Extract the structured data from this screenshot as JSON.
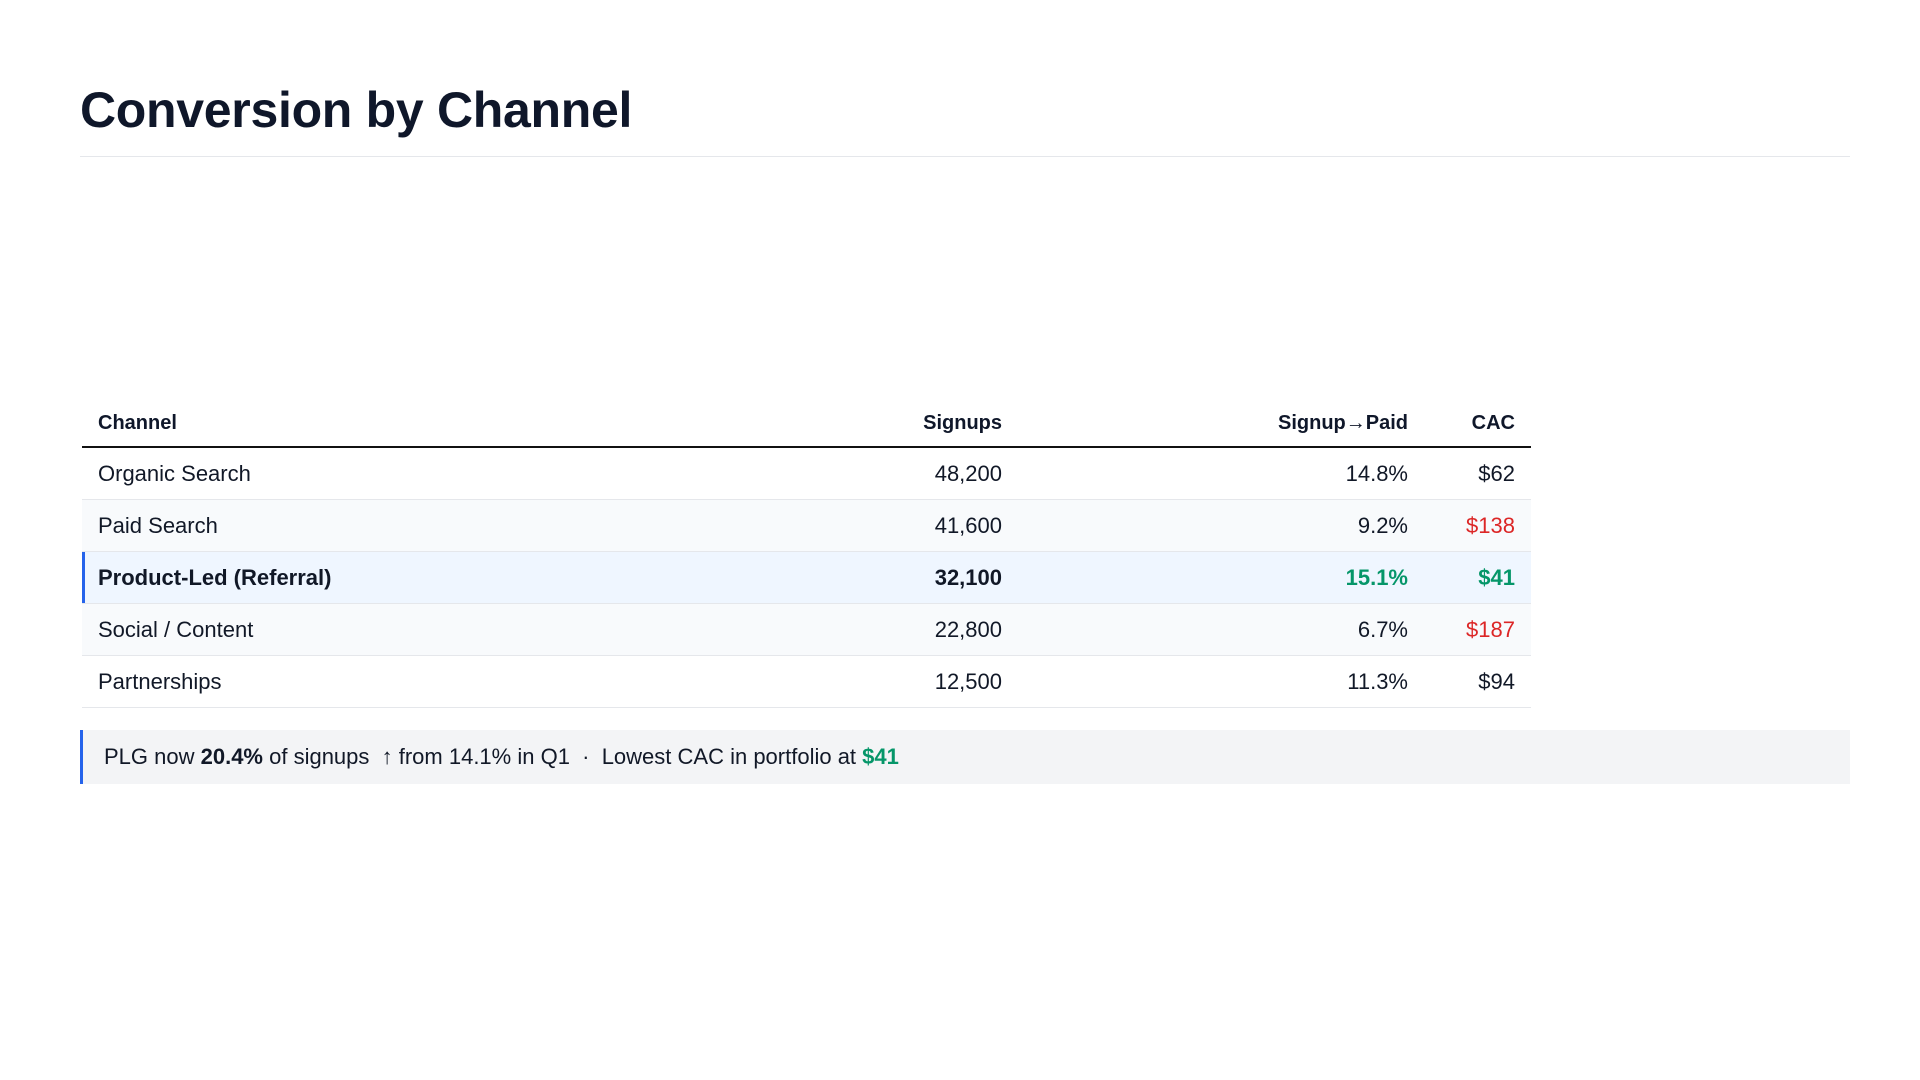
{
  "header": {
    "title": "Conversion by Channel"
  },
  "table": {
    "columns": [
      "Channel",
      "Signups",
      "Signup→Paid",
      "CAC"
    ],
    "rows": [
      {
        "channel": "Organic Search",
        "signups": "48,200",
        "signup_to_paid": "14.8%",
        "cac": "$62"
      },
      {
        "channel": "Paid Search",
        "signups": "41,600",
        "signup_to_paid": "9.2%",
        "cac": "$138"
      },
      {
        "channel": "Product-Led (Referral)",
        "signups": "32,100",
        "signup_to_paid": "15.1%",
        "cac": "$41"
      },
      {
        "channel": "Social / Content",
        "signups": "22,800",
        "signup_to_paid": "6.7%",
        "cac": "$187"
      },
      {
        "channel": "Partnerships",
        "signups": "12,500",
        "signup_to_paid": "11.3%",
        "cac": "$94"
      }
    ]
  },
  "callout": {
    "prefix": "PLG now ",
    "share": "20.4%",
    "middle": " of signups  ↑ from 14.1% in Q1  ·  Lowest CAC in portfolio at ",
    "cac": "$41"
  },
  "colors": {
    "accent": "#2563eb",
    "positive": "#059669",
    "negative": "#dc2626",
    "highlight_row": "#eff6ff"
  }
}
